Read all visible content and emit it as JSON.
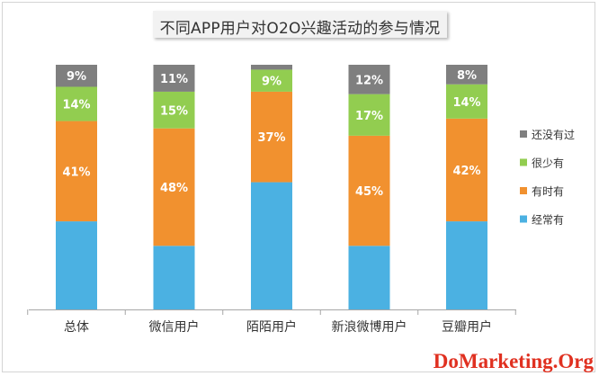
{
  "title": "不同APP用户对O2O兴趣活动的参与情况",
  "watermark": "DoMarketing.Org",
  "colors": {
    "经常有": "#4bb1e2",
    "有时有": "#f1912f",
    "很少有": "#92cd50",
    "还没有过": "#7f7f7f"
  },
  "chart_data": {
    "type": "bar",
    "stacked": true,
    "ylim": [
      0,
      100
    ],
    "categories": [
      "总体",
      "微信用户",
      "陌陌用户",
      "新浪微博用户",
      "豆瓣用户"
    ],
    "series": [
      {
        "name": "经常有",
        "values": [
          36,
          26,
          52,
          26,
          36
        ],
        "labels": [
          "",
          "",
          "",
          "",
          ""
        ]
      },
      {
        "name": "有时有",
        "values": [
          41,
          48,
          37,
          45,
          42
        ],
        "labels": [
          "41%",
          "48%",
          "37%",
          "45%",
          "42%"
        ]
      },
      {
        "name": "很少有",
        "values": [
          14,
          15,
          9,
          17,
          14
        ],
        "labels": [
          "14%",
          "15%",
          "9%",
          "17%",
          "14%"
        ]
      },
      {
        "name": "还没有过",
        "values": [
          9,
          11,
          2,
          12,
          8
        ],
        "labels": [
          "9%",
          "11%",
          "",
          "12%",
          "8%"
        ]
      }
    ],
    "legend": {
      "position": "right",
      "order": [
        "还没有过",
        "很少有",
        "有时有",
        "经常有"
      ]
    },
    "grid": false,
    "xlabel": "",
    "ylabel": ""
  }
}
